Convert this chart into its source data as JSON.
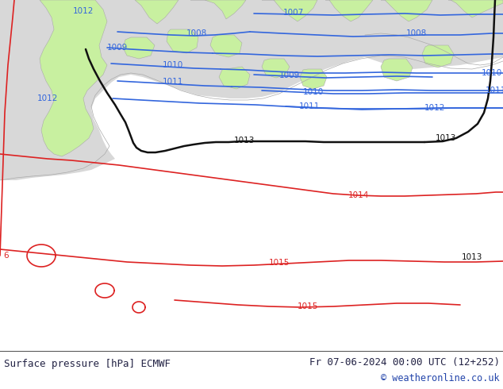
{
  "title_left": "Surface pressure [hPa] ECMWF",
  "title_right": "Fr 07-06-2024 00:00 UTC (12+252)",
  "copyright": "© weatheronline.co.uk",
  "land_color": "#c8f0a0",
  "sea_color": "#d8d8d8",
  "coast_color": "#aaaaaa",
  "blue_color": "#3366dd",
  "black_color": "#111111",
  "red_color": "#dd2222",
  "footer_bg": "#ffffff",
  "footer_text": "#222244",
  "blue_text": "#1144bb",
  "label_fs": 7.5,
  "footer_fs": 9.0
}
